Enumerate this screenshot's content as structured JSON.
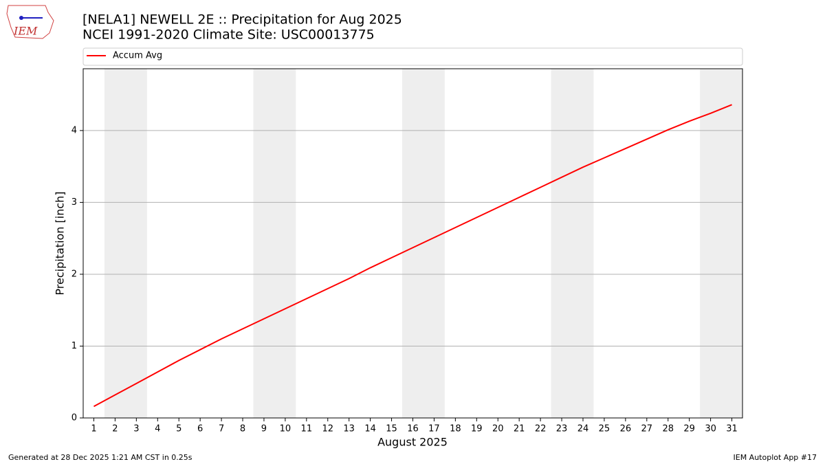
{
  "chart_data": {
    "type": "line",
    "title": "[NELA1] NEWELL 2E :: Precipitation for Aug 2025",
    "subtitle": "NCEI 1991-2020 Climate Site: USC00013775",
    "xlabel": "August 2025",
    "ylabel": "Precipitation [inch]",
    "x": [
      1,
      2,
      3,
      4,
      5,
      6,
      7,
      8,
      9,
      10,
      11,
      12,
      13,
      14,
      15,
      16,
      17,
      18,
      19,
      20,
      21,
      22,
      23,
      24,
      25,
      26,
      27,
      28,
      29,
      30,
      31
    ],
    "series": [
      {
        "name": "Accum Avg",
        "color": "#ff0000",
        "values": [
          0.16,
          0.32,
          0.48,
          0.64,
          0.8,
          0.95,
          1.1,
          1.24,
          1.38,
          1.52,
          1.66,
          1.8,
          1.94,
          2.09,
          2.23,
          2.37,
          2.51,
          2.65,
          2.79,
          2.93,
          3.07,
          3.21,
          3.35,
          3.49,
          3.62,
          3.75,
          3.88,
          4.01,
          4.13,
          4.24,
          4.36
        ]
      }
    ],
    "xlim": [
      0.5,
      31.5
    ],
    "ylim": [
      0,
      4.86
    ],
    "xticks": [
      1,
      2,
      3,
      4,
      5,
      6,
      7,
      8,
      9,
      10,
      11,
      12,
      13,
      14,
      15,
      16,
      17,
      18,
      19,
      20,
      21,
      22,
      23,
      24,
      25,
      26,
      27,
      28,
      29,
      30,
      31
    ],
    "yticks": [
      0,
      1,
      2,
      3,
      4
    ],
    "grid": true,
    "shaded_spans": [
      [
        1.5,
        3.5
      ],
      [
        8.5,
        10.5
      ],
      [
        15.5,
        17.5
      ],
      [
        22.5,
        24.5
      ],
      [
        29.5,
        31.5
      ]
    ],
    "shade_color": "#eeeeee",
    "legend": "top"
  },
  "logo": {
    "text": "IEM"
  },
  "footer": {
    "left": "Generated at 28 Dec 2025 1:21 AM CST in 0.25s",
    "right": "IEM Autoplot App #17"
  }
}
